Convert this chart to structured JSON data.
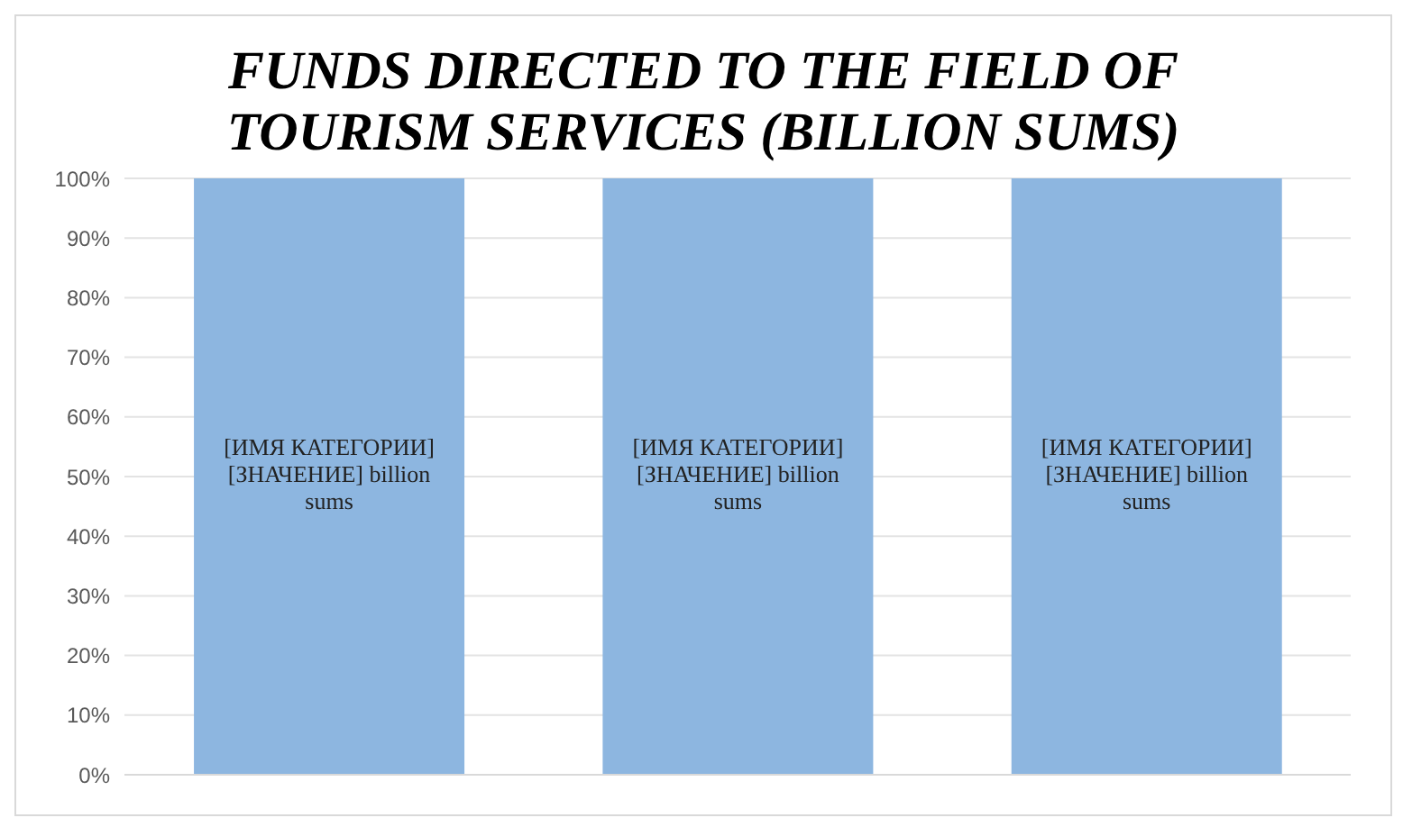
{
  "chart_data": {
    "type": "bar",
    "title": "FUNDS DIRECTED TO THE FIELD OF TOURISM SERVICES (BILLION SUMS)",
    "categories": [
      null,
      null,
      null
    ],
    "values": [
      100,
      100,
      100
    ],
    "color": "#8db6e0",
    "value_labels": [
      "[ИМЯ КАТЕГОРИИ] [ЗНАЧЕНИЕ] billion sums",
      "[ИМЯ КАТЕГОРИИ] [ЗНАЧЕНИЕ] billion sums",
      "[ИМЯ КАТЕГОРИИ] [ЗНАЧЕНИЕ] billion sums"
    ],
    "ylim": [
      0,
      100
    ],
    "yticks": [
      {
        "value": 0,
        "label": "0%"
      },
      {
        "value": 10,
        "label": "10%"
      },
      {
        "value": 20,
        "label": "20%"
      },
      {
        "value": 30,
        "label": "30%"
      },
      {
        "value": 40,
        "label": "40%"
      },
      {
        "value": 50,
        "label": "50%"
      },
      {
        "value": 60,
        "label": "60%"
      },
      {
        "value": 70,
        "label": "70%"
      },
      {
        "value": 80,
        "label": "80%"
      },
      {
        "value": 90,
        "label": "90%"
      },
      {
        "value": 100,
        "label": "100%"
      }
    ],
    "grid": "y"
  }
}
